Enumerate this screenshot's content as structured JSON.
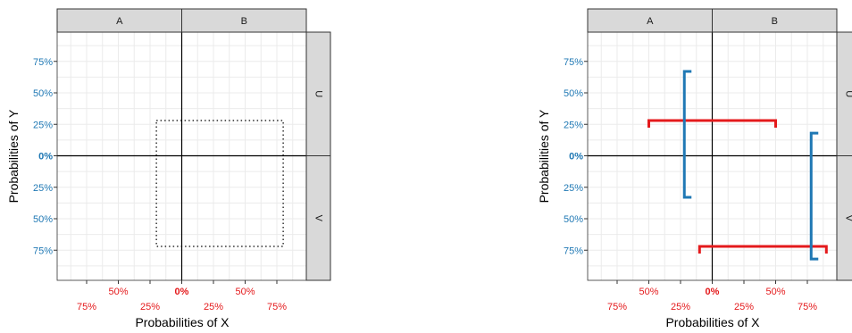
{
  "colors": {
    "x_tick": "#e41a1c",
    "y_tick": "#1f78b4",
    "interval_x": "#e41a1c",
    "interval_y": "#1f78b4",
    "box": "#000000",
    "strip_bg": "#d9d9d9"
  },
  "chart_data": [
    {
      "type": "faceted-intervals",
      "xlabel": "Probabilities of X",
      "ylabel": "Probabilities of Y",
      "column_strips": [
        "A",
        "B"
      ],
      "row_strips": [
        "U",
        "V"
      ],
      "xlim": [
        -1.0,
        1.0
      ],
      "ylim": [
        -1.0,
        1.0
      ],
      "x_ticks": [
        {
          "value": -0.75,
          "label": "75%",
          "row": 2
        },
        {
          "value": -0.5,
          "label": "50%",
          "row": 1
        },
        {
          "value": -0.25,
          "label": "25%",
          "row": 2
        },
        {
          "value": 0.0,
          "label": "0%",
          "row": 1,
          "bold": true
        },
        {
          "value": 0.25,
          "label": "25%",
          "row": 2
        },
        {
          "value": 0.5,
          "label": "50%",
          "row": 1
        },
        {
          "value": 0.75,
          "label": "75%",
          "row": 2
        }
      ],
      "y_ticks": [
        {
          "value": 0.75,
          "label": "75%"
        },
        {
          "value": 0.5,
          "label": "50%"
        },
        {
          "value": 0.25,
          "label": "25%"
        },
        {
          "value": 0.0,
          "label": "0%",
          "bold": true
        },
        {
          "value": -0.25,
          "label": "25%"
        },
        {
          "value": -0.5,
          "label": "50%"
        },
        {
          "value": -0.75,
          "label": "75%"
        }
      ],
      "box": {
        "x": [
          -0.2,
          0.8
        ],
        "y": [
          -0.72,
          0.28
        ]
      },
      "x_intervals": [],
      "y_intervals": []
    },
    {
      "type": "faceted-intervals",
      "xlabel": "Probabilities of X",
      "ylabel": "Probabilities of Y",
      "column_strips": [
        "A",
        "B"
      ],
      "row_strips": [
        "U",
        "V"
      ],
      "xlim": [
        -1.0,
        1.0
      ],
      "ylim": [
        -1.0,
        1.0
      ],
      "x_ticks": [
        {
          "value": -0.75,
          "label": "75%",
          "row": 2
        },
        {
          "value": -0.5,
          "label": "50%",
          "row": 1
        },
        {
          "value": -0.25,
          "label": "25%",
          "row": 2
        },
        {
          "value": 0.0,
          "label": "0%",
          "row": 1,
          "bold": true
        },
        {
          "value": 0.25,
          "label": "25%",
          "row": 2
        },
        {
          "value": 0.5,
          "label": "50%",
          "row": 1
        },
        {
          "value": 0.75,
          "label": "75%",
          "row": 2
        }
      ],
      "y_ticks": [
        {
          "value": 0.75,
          "label": "75%"
        },
        {
          "value": 0.5,
          "label": "50%"
        },
        {
          "value": 0.25,
          "label": "25%"
        },
        {
          "value": 0.0,
          "label": "0%",
          "bold": true
        },
        {
          "value": -0.25,
          "label": "25%"
        },
        {
          "value": -0.5,
          "label": "50%"
        },
        {
          "value": -0.75,
          "label": "75%"
        }
      ],
      "box": null,
      "x_intervals": [
        {
          "y": 0.28,
          "x": [
            -0.5,
            0.5
          ]
        },
        {
          "y": -0.72,
          "x": [
            -0.1,
            0.9
          ]
        }
      ],
      "y_intervals": [
        {
          "x": -0.22,
          "y": [
            -0.33,
            0.67
          ]
        },
        {
          "x": 0.78,
          "y": [
            -0.82,
            0.18
          ]
        }
      ]
    }
  ]
}
